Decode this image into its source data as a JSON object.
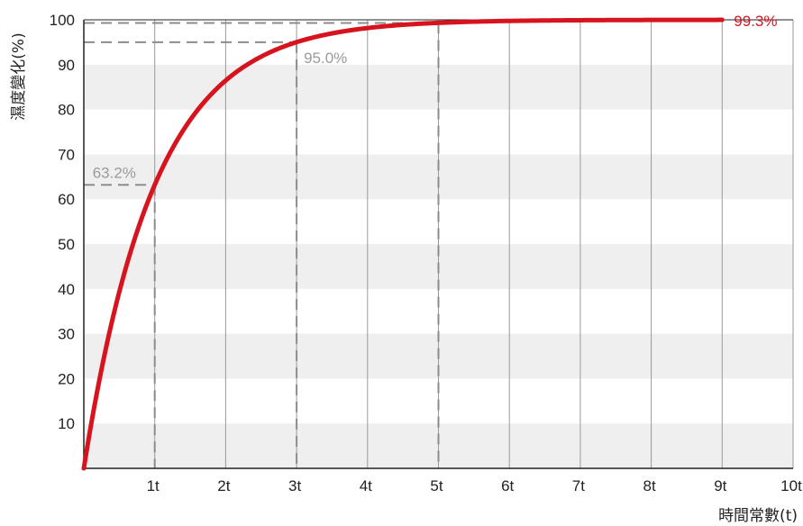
{
  "chart_data": {
    "type": "line",
    "ylabel": "濕度變化(%)",
    "xlabel": "時間常數(t)",
    "xlim": [
      0,
      10
    ],
    "ylim": [
      0,
      100
    ],
    "x_tick_labels": [
      "1t",
      "2t",
      "3t",
      "4t",
      "5t",
      "6t",
      "7t",
      "8t",
      "9t",
      "10t"
    ],
    "y_tick_labels": [
      "10",
      "20",
      "30",
      "40",
      "50",
      "60",
      "70",
      "80",
      "90",
      "100"
    ],
    "grid": "vertical lines at each time constant, alternating horizontal bands",
    "series": [
      {
        "color": "#d7141d",
        "function": "100*(1-exp(-x))",
        "x_range": [
          0,
          9
        ],
        "points": [
          {
            "x": 0,
            "y": 0
          },
          {
            "x": 0.5,
            "y": 39.3
          },
          {
            "x": 1,
            "y": 63.2
          },
          {
            "x": 1.5,
            "y": 77.7
          },
          {
            "x": 2,
            "y": 86.5
          },
          {
            "x": 2.5,
            "y": 91.8
          },
          {
            "x": 3,
            "y": 95.0
          },
          {
            "x": 4,
            "y": 98.2
          },
          {
            "x": 5,
            "y": 99.3
          },
          {
            "x": 6,
            "y": 99.75
          },
          {
            "x": 7,
            "y": 99.9
          },
          {
            "x": 8,
            "y": 99.97
          },
          {
            "x": 9,
            "y": 99.99
          }
        ]
      }
    ],
    "annotations": [
      {
        "x": 1,
        "y": 63.2,
        "label": "63.2%",
        "color": "#9a9a9a"
      },
      {
        "x": 3,
        "y": 95.0,
        "label": "95.0%",
        "color": "#9a9a9a"
      },
      {
        "x": 5,
        "y": 99.3,
        "label": "99.3%",
        "color": "#d7141d"
      }
    ]
  }
}
